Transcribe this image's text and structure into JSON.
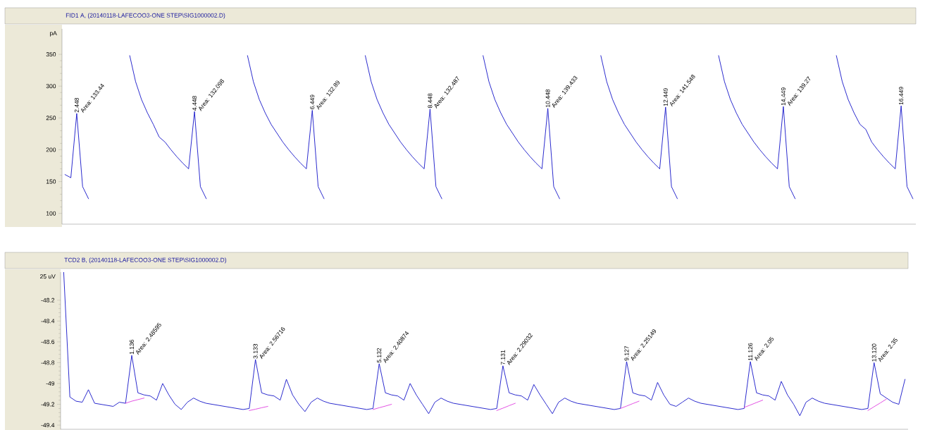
{
  "chart_data": [
    {
      "type": "line",
      "title": "FID1 A, (20140118-LAFECOO3-ONE STEP\\SIG1000002.D)",
      "ylabel": "pA",
      "ylim": [
        83,
        390
      ],
      "tick_labels": "y",
      "categories": [
        null,
        null,
        null,
        null,
        null,
        null,
        null,
        null,
        null,
        null,
        null,
        null,
        null,
        null,
        null,
        null,
        null,
        null,
        null,
        null,
        null,
        null,
        null,
        null,
        null,
        null,
        null,
        null,
        null,
        null,
        null,
        null,
        null,
        null,
        null,
        null,
        null,
        null,
        null,
        null,
        null,
        null,
        null,
        null,
        null,
        null,
        null,
        null,
        null,
        null,
        null,
        null,
        null,
        null,
        null,
        null,
        null,
        null,
        null,
        null,
        null,
        null,
        null,
        null,
        null,
        null,
        null,
        null,
        null,
        null,
        null,
        null,
        null,
        null,
        null,
        null,
        null,
        null,
        null,
        null,
        null,
        null,
        null,
        null,
        null,
        null,
        null,
        null,
        null,
        null,
        null,
        null,
        null,
        null,
        null,
        null,
        null,
        null,
        null,
        null,
        null,
        null,
        null,
        null,
        null,
        null,
        null,
        null,
        null,
        null,
        null,
        null,
        null,
        null,
        null,
        null,
        null,
        null,
        null,
        null,
        null,
        null,
        null,
        null,
        null,
        null,
        null,
        null,
        null,
        null,
        null,
        null,
        null,
        null,
        null,
        null,
        null,
        null,
        null,
        null,
        null,
        null,
        null,
        null,
        null
      ],
      "yticks": [
        100,
        150,
        200,
        250,
        300,
        350
      ],
      "series": [
        {
          "color": "#1414c8",
          "values": [
            161,
            156,
            257,
            142,
            123,
            null,
            null,
            null,
            null,
            null,
            null,
            348,
            307,
            279,
            258,
            240,
            220,
            212,
            200,
            189,
            179,
            170,
            260,
            142,
            123,
            null,
            null,
            null,
            null,
            null,
            null,
            348,
            307,
            279,
            258,
            240,
            226,
            212,
            200,
            189,
            179,
            170,
            262,
            142,
            123,
            null,
            null,
            null,
            null,
            null,
            null,
            348,
            307,
            279,
            258,
            240,
            226,
            212,
            200,
            189,
            179,
            170,
            264,
            142,
            123,
            null,
            null,
            null,
            null,
            null,
            null,
            348,
            307,
            279,
            258,
            240,
            226,
            212,
            200,
            189,
            179,
            170,
            265,
            142,
            123,
            null,
            null,
            null,
            null,
            null,
            null,
            348,
            307,
            279,
            258,
            240,
            226,
            212,
            200,
            189,
            179,
            170,
            267,
            142,
            123,
            null,
            null,
            null,
            null,
            null,
            null,
            348,
            307,
            279,
            258,
            240,
            226,
            212,
            200,
            189,
            179,
            170,
            268,
            142,
            123,
            null,
            null,
            null,
            null,
            null,
            null,
            348,
            307,
            279,
            258,
            240,
            232,
            212,
            200,
            189,
            179,
            170,
            269,
            142,
            123
          ]
        }
      ],
      "annotations": [
        {
          "text": "2.448",
          "y": 257
        },
        "Area: 133.44",
        {
          "text": "4.448",
          "y": 260
        },
        "Area: 132.098",
        {
          "text": "6.449",
          "y": 262
        },
        "Area: 132.89",
        {
          "text": "8.448",
          "y": 264
        },
        "Area: 132.487",
        {
          "text": "10.448",
          "y": 265
        },
        "Area: 139.433",
        {
          "text": "12.449",
          "y": 267
        },
        "Area: 141.548",
        {
          "text": "14.449",
          "y": 268
        },
        "Area: 139.27",
        {
          "text": "16.449",
          "y": 269
        }
      ]
    },
    {
      "type": "line",
      "title": "TCD2 B, (20140118-LAFECOO3-ONE STEP\\SIG1000002.D)",
      "ylabel": "25 uV",
      "ylim": [
        -49.44,
        -47.93
      ],
      "tick_labels": "y",
      "categories": [
        null,
        null,
        null,
        null,
        null,
        null,
        null,
        null,
        null,
        null,
        null,
        null,
        null,
        null,
        null,
        null,
        null,
        null,
        null,
        null,
        null,
        null,
        null,
        null,
        null,
        null,
        null,
        null,
        null,
        null,
        null,
        null,
        null,
        null,
        null,
        null,
        null,
        null,
        null,
        null,
        null,
        null,
        null,
        null,
        null,
        null,
        null,
        null,
        null,
        null,
        null,
        null,
        null,
        null,
        null,
        null,
        null,
        null,
        null,
        null,
        null,
        null,
        null,
        null,
        null,
        null,
        null,
        null,
        null,
        null,
        null,
        null,
        null,
        null,
        null,
        null,
        null,
        null,
        null,
        null,
        null,
        null,
        null,
        null,
        null,
        null,
        null,
        null,
        null,
        null,
        null,
        null,
        null,
        null,
        null,
        null,
        null,
        null,
        null,
        null,
        null,
        null,
        null,
        null,
        null,
        null,
        null,
        null,
        null,
        null,
        null,
        null,
        null,
        null,
        null,
        null,
        null,
        null,
        null,
        null,
        null,
        null,
        null,
        null,
        null,
        null,
        null,
        null,
        null,
        null,
        null,
        null,
        null,
        null,
        null,
        null,
        null
      ],
      "yticks": [
        -48.2,
        -48.4,
        -48.6,
        -48.8,
        -49,
        -49.2,
        -49.4
      ],
      "series": [
        {
          "color": "#1414c8",
          "values": [
            -47.93,
            -49.13,
            -49.17,
            -49.18,
            -49.06,
            -49.19,
            -49.2,
            -49.21,
            -49.22,
            -49.18,
            -49.19,
            -48.73,
            -49.09,
            -49.11,
            -49.12,
            -49.16,
            -49.0,
            -49.11,
            -49.2,
            -49.25,
            -49.18,
            -49.14,
            -49.17,
            -49.19,
            -49.2,
            -49.21,
            -49.22,
            -49.23,
            -49.24,
            -49.25,
            -49.24,
            -48.77,
            -49.09,
            -49.11,
            -49.12,
            -49.16,
            -48.96,
            -49.11,
            -49.2,
            -49.27,
            -49.18,
            -49.14,
            -49.17,
            -49.19,
            -49.2,
            -49.21,
            -49.22,
            -49.23,
            -49.24,
            -49.25,
            -49.24,
            -48.81,
            -49.09,
            -49.11,
            -49.12,
            -49.16,
            -49.0,
            -49.11,
            -49.2,
            -49.29,
            -49.18,
            -49.14,
            -49.17,
            -49.19,
            -49.2,
            -49.21,
            -49.22,
            -49.23,
            -49.24,
            -49.25,
            -49.24,
            -48.83,
            -49.09,
            -49.11,
            -49.12,
            -49.16,
            -49.01,
            -49.11,
            -49.2,
            -49.29,
            -49.18,
            -49.14,
            -49.17,
            -49.19,
            -49.2,
            -49.21,
            -49.22,
            -49.23,
            -49.24,
            -49.25,
            -49.24,
            -48.79,
            -49.09,
            -49.11,
            -49.12,
            -49.16,
            -48.99,
            -49.11,
            -49.2,
            -49.22,
            -49.18,
            -49.14,
            -49.17,
            -49.19,
            -49.2,
            -49.21,
            -49.22,
            -49.23,
            -49.24,
            -49.25,
            -49.24,
            -48.79,
            -49.09,
            -49.11,
            -49.12,
            -49.16,
            -48.98,
            -49.11,
            -49.2,
            -49.31,
            -49.18,
            -49.14,
            -49.17,
            -49.19,
            -49.2,
            -49.21,
            -49.22,
            -49.23,
            -49.24,
            -49.25,
            -49.24,
            -48.8,
            -49.1,
            -49.14,
            -49.18,
            -49.2,
            -48.96
          ]
        },
        {
          "color": "#e040e0",
          "values": [
            null,
            null,
            null,
            null,
            null,
            null,
            null,
            null,
            null,
            null,
            -49.19,
            -49.17,
            -49.155,
            -49.14,
            null,
            null,
            null,
            null,
            null,
            null,
            null,
            null,
            null,
            null,
            null,
            null,
            null,
            null,
            null,
            null,
            -49.26,
            -49.247,
            -49.233,
            -49.22,
            null,
            null,
            null,
            null,
            null,
            null,
            null,
            null,
            null,
            null,
            null,
            null,
            null,
            null,
            null,
            null,
            -49.25,
            -49.233,
            -49.217,
            -49.2,
            null,
            null,
            null,
            null,
            null,
            null,
            null,
            null,
            null,
            null,
            null,
            null,
            null,
            null,
            null,
            null,
            -49.26,
            -49.237,
            -49.213,
            -49.19,
            null,
            null,
            null,
            null,
            null,
            null,
            null,
            null,
            null,
            null,
            null,
            null,
            null,
            null,
            null,
            null,
            -49.24,
            -49.217,
            -49.193,
            -49.17,
            null,
            null,
            null,
            null,
            null,
            null,
            null,
            null,
            null,
            null,
            null,
            null,
            null,
            null,
            null,
            null,
            -49.23,
            -49.207,
            -49.183,
            -49.16,
            null,
            null,
            null,
            null,
            null,
            null,
            null,
            null,
            null,
            null,
            null,
            null,
            null,
            null,
            null,
            null,
            -49.26,
            -49.223,
            -49.187,
            -49.15,
            null,
            null,
            null
          ]
        }
      ],
      "annotations": [
        {
          "text": "1.136",
          "y": -48.73
        },
        "Area: 2.48595",
        {
          "text": "3.133",
          "y": -48.77
        },
        "Area: 2.56716",
        {
          "text": "5.132",
          "y": -48.81
        },
        "Area: 2.40874",
        {
          "text": "7.131",
          "y": -48.83
        },
        "Area: 2.29032",
        {
          "text": "9.127",
          "y": -48.79
        },
        "Area: 2.25149",
        {
          "text": "11.126",
          "y": -48.79
        },
        "Area: 2.05",
        {
          "text": "13.120",
          "y": -48.8
        },
        "Area: 2.35"
      ]
    }
  ]
}
